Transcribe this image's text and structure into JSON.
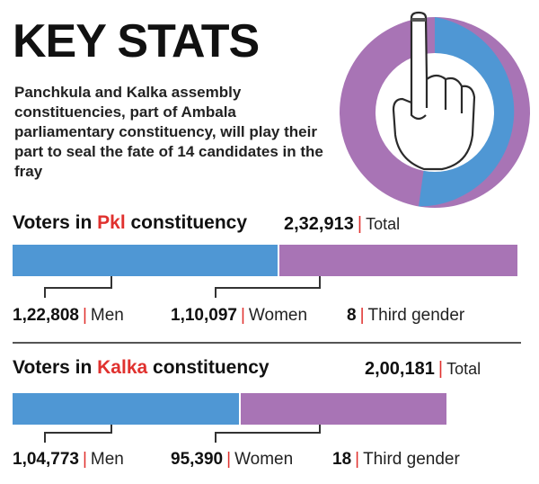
{
  "header": {
    "title": "KEY STATS",
    "intro": "Panchkula and Kalka assembly constituencies, part of Ambala parliamentary constituency, will play their part to seal the fate of 14 candidates in the fray"
  },
  "colors": {
    "men": "#4f97d4",
    "women": "#a874b5",
    "accent": "#e0312e"
  },
  "donut_icon": "voting-finger-icon",
  "chart_data": [
    {
      "type": "bar",
      "title_parts": [
        "Voters in ",
        "Pkl",
        " constituency"
      ],
      "total": "2,32,913",
      "total_label": "Total",
      "categories": [
        "Men",
        "Women",
        "Third gender"
      ],
      "values": [
        122808,
        110097,
        8
      ],
      "value_labels": [
        "1,22,808",
        "1,10,097",
        "8"
      ]
    },
    {
      "type": "bar",
      "title_parts": [
        "Voters in ",
        "Kalka",
        " constituency"
      ],
      "total": "2,00,181",
      "total_label": "Total",
      "categories": [
        "Men",
        "Women",
        "Third gender"
      ],
      "values": [
        104773,
        95390,
        18
      ],
      "value_labels": [
        "1,04,773",
        "95,390",
        "18"
      ]
    }
  ]
}
